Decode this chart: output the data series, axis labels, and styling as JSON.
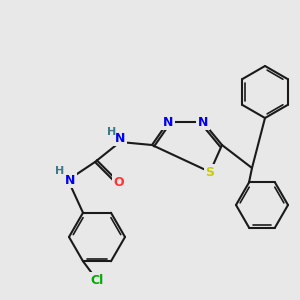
{
  "bg_color": "#e8e8e8",
  "bond_color": "#1a1a1a",
  "bond_lw": 1.5,
  "atom_colors": {
    "N": "#0000ee",
    "S": "#cccc00",
    "O": "#ff3333",
    "Cl": "#00aa00",
    "H_label": "#3a7a8a"
  },
  "font_size": 9,
  "font_size_small": 8
}
